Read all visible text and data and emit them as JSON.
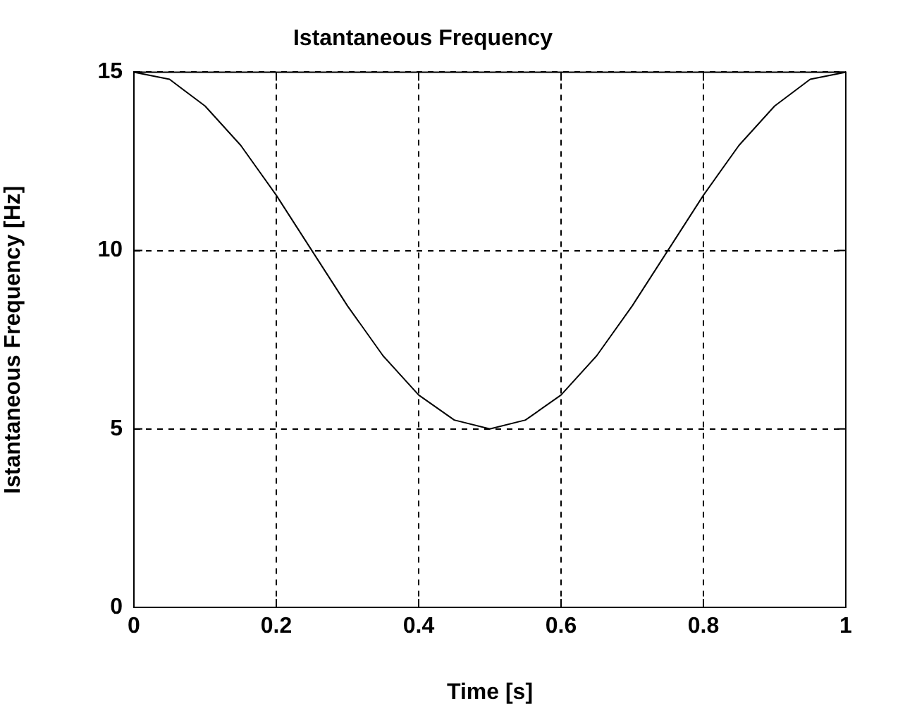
{
  "chart_data": {
    "type": "line",
    "title": "Istantaneous Frequency",
    "xlabel": "Time [s]",
    "ylabel": "Istantaneous Frequency [Hz]",
    "x": [
      0,
      0.05,
      0.1,
      0.15,
      0.2,
      0.25,
      0.3,
      0.35,
      0.4,
      0.45,
      0.5,
      0.55,
      0.6,
      0.65,
      0.7,
      0.75,
      0.8,
      0.85,
      0.9,
      0.95,
      1
    ],
    "series": [
      {
        "color": "#000000",
        "values": [
          15,
          14.8,
          14.05,
          12.95,
          11.55,
          10,
          8.45,
          7.05,
          5.95,
          5.25,
          5,
          5.25,
          5.95,
          7.05,
          8.45,
          10,
          11.55,
          12.95,
          14.05,
          14.8,
          15
        ]
      }
    ],
    "xlim": [
      0,
      1
    ],
    "ylim": [
      0,
      15
    ],
    "xticks": [
      0,
      0.2,
      0.4,
      0.6,
      0.8,
      1
    ],
    "yticks": [
      0,
      5,
      10,
      15
    ],
    "grid": true,
    "line_style": "solid",
    "marker": "none"
  }
}
